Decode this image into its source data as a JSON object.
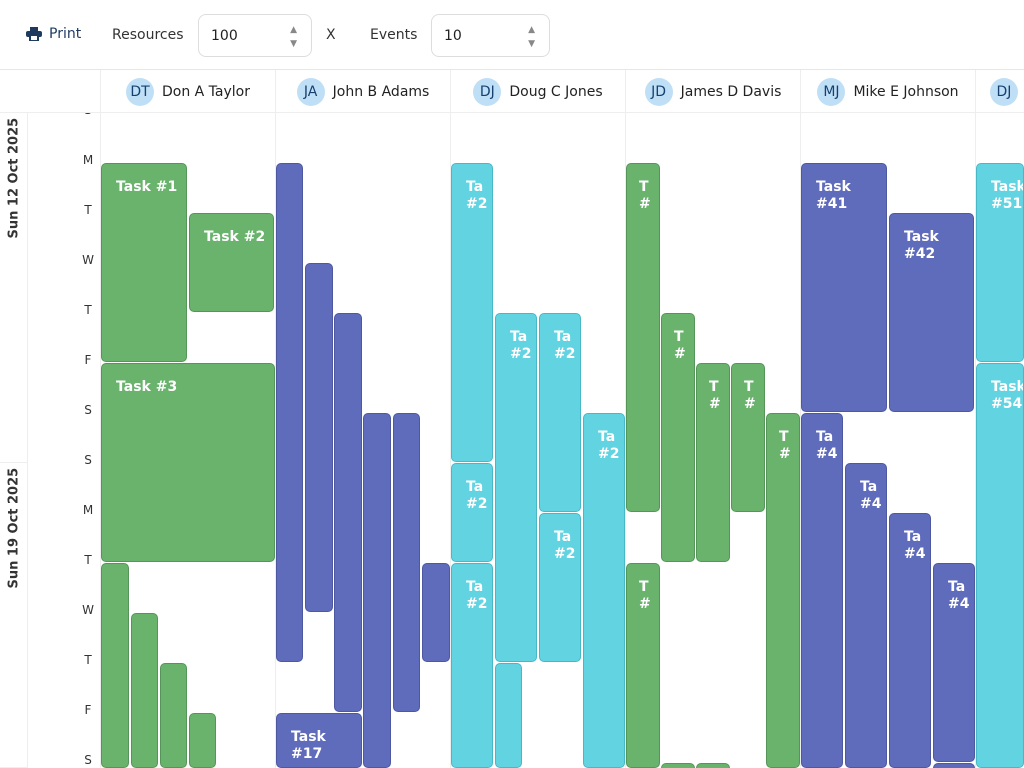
{
  "toolbar": {
    "print_label": "Print",
    "print_icon": "printer-icon",
    "resources_label": "Resources",
    "resources_value": "100",
    "x_label": "X",
    "events_label": "Events",
    "events_value": "10"
  },
  "resources": [
    {
      "initials": "DT",
      "name": "Don A Taylor"
    },
    {
      "initials": "JA",
      "name": "John B Adams"
    },
    {
      "initials": "DJ",
      "name": "Doug C Jones"
    },
    {
      "initials": "JD",
      "name": "James D Davis"
    },
    {
      "initials": "MJ",
      "name": "Mike E Johnson"
    },
    {
      "initials": "DJ",
      "name": ""
    }
  ],
  "weeks": [
    "Sun 12 Oct 2025",
    "Sun 19 Oct 2025"
  ],
  "day_letters": [
    "S",
    "M",
    "T",
    "W",
    "T",
    "F",
    "S",
    "S",
    "M",
    "T",
    "W",
    "T",
    "F",
    "S"
  ],
  "colors": {
    "green": "#69b36c",
    "indigo": "#5f6bbb",
    "cyan": "#62d3e1"
  },
  "events": [
    {
      "resource": 0,
      "label": "Task #1",
      "color": "green",
      "start": "2025-10-13",
      "end": "2025-10-17"
    },
    {
      "resource": 0,
      "label": "Task #2",
      "color": "green",
      "start": "2025-10-14",
      "end": "2025-10-16"
    },
    {
      "resource": 0,
      "label": "Task #3",
      "color": "green",
      "start": "2025-10-17",
      "end": "2025-10-21"
    },
    {
      "resource": 0,
      "label": "",
      "color": "green",
      "start": "2025-10-21",
      "end": null
    },
    {
      "resource": 0,
      "label": "",
      "color": "green",
      "start": "2025-10-22",
      "end": null
    },
    {
      "resource": 0,
      "label": "",
      "color": "green",
      "start": "2025-10-23",
      "end": null
    },
    {
      "resource": 0,
      "label": "",
      "color": "green",
      "start": "2025-10-24",
      "end": null
    },
    {
      "resource": 1,
      "label": "",
      "color": "indigo",
      "start": "2025-10-13",
      "end": "2025-10-23"
    },
    {
      "resource": 1,
      "label": "",
      "color": "indigo",
      "start": "2025-10-15",
      "end": "2025-10-22"
    },
    {
      "resource": 1,
      "label": "",
      "color": "indigo",
      "start": "2025-10-16",
      "end": "2025-10-24"
    },
    {
      "resource": 1,
      "label": "",
      "color": "indigo",
      "start": "2025-10-18",
      "end": null
    },
    {
      "resource": 1,
      "label": "",
      "color": "indigo",
      "start": "2025-10-18",
      "end": "2025-10-24"
    },
    {
      "resource": 1,
      "label": "",
      "color": "indigo",
      "start": "2025-10-21",
      "end": "2025-10-23"
    },
    {
      "resource": 1,
      "label": "Task #17",
      "color": "indigo",
      "start": "2025-10-24",
      "end": null
    },
    {
      "resource": 2,
      "label": "Ta #2",
      "color": "cyan",
      "start": "2025-10-13",
      "end": "2025-10-19"
    },
    {
      "resource": 2,
      "label": "Ta #2",
      "color": "cyan",
      "start": "2025-10-19",
      "end": "2025-10-21"
    },
    {
      "resource": 2,
      "label": "Ta #2",
      "color": "cyan",
      "start": "2025-10-21",
      "end": null
    },
    {
      "resource": 2,
      "label": "Ta #2",
      "color": "cyan",
      "start": "2025-10-16",
      "end": "2025-10-23"
    },
    {
      "resource": 2,
      "label": "",
      "color": "cyan",
      "start": "2025-10-23",
      "end": null
    },
    {
      "resource": 2,
      "label": "Ta #2",
      "color": "cyan",
      "start": "2025-10-16",
      "end": "2025-10-20"
    },
    {
      "resource": 2,
      "label": "Ta #2",
      "color": "cyan",
      "start": "2025-10-20",
      "end": "2025-10-23"
    },
    {
      "resource": 2,
      "label": "Ta #2",
      "color": "cyan",
      "start": "2025-10-18",
      "end": null
    },
    {
      "resource": 3,
      "label": "T #",
      "color": "green",
      "start": "2025-10-13",
      "end": "2025-10-20"
    },
    {
      "resource": 3,
      "label": "T #",
      "color": "green",
      "start": "2025-10-16",
      "end": "2025-10-21"
    },
    {
      "resource": 3,
      "label": "T #",
      "color": "green",
      "start": "2025-10-17",
      "end": "2025-10-21"
    },
    {
      "resource": 3,
      "label": "T #",
      "color": "green",
      "start": "2025-10-17",
      "end": "2025-10-20"
    },
    {
      "resource": 3,
      "label": "T #",
      "color": "green",
      "start": "2025-10-18",
      "end": null
    },
    {
      "resource": 3,
      "label": "T #",
      "color": "green",
      "start": "2025-10-21",
      "end": null
    },
    {
      "resource": 3,
      "label": "",
      "color": "green",
      "start": "2025-10-25",
      "end": null
    },
    {
      "resource": 3,
      "label": "",
      "color": "green",
      "start": "2025-10-25",
      "end": null
    },
    {
      "resource": 4,
      "label": "Task #41",
      "color": "indigo",
      "start": "2025-10-13",
      "end": "2025-10-18"
    },
    {
      "resource": 4,
      "label": "Task #42",
      "color": "indigo",
      "start": "2025-10-14",
      "end": "2025-10-18"
    },
    {
      "resource": 4,
      "label": "Ta #4",
      "color": "indigo",
      "start": "2025-10-18",
      "end": null
    },
    {
      "resource": 4,
      "label": "Ta #4",
      "color": "indigo",
      "start": "2025-10-19",
      "end": null
    },
    {
      "resource": 4,
      "label": "Ta #4",
      "color": "indigo",
      "start": "2025-10-20",
      "end": null
    },
    {
      "resource": 4,
      "label": "Ta #4",
      "color": "indigo",
      "start": "2025-10-21",
      "end": "2025-10-25"
    },
    {
      "resource": 4,
      "label": "",
      "color": "indigo",
      "start": "2025-10-25",
      "end": null
    },
    {
      "resource": 5,
      "label": "Task #51",
      "color": "cyan",
      "start": "2025-10-13",
      "end": "2025-10-17"
    },
    {
      "resource": 5,
      "label": "Task #54",
      "color": "cyan",
      "start": "2025-10-17",
      "end": null
    }
  ]
}
